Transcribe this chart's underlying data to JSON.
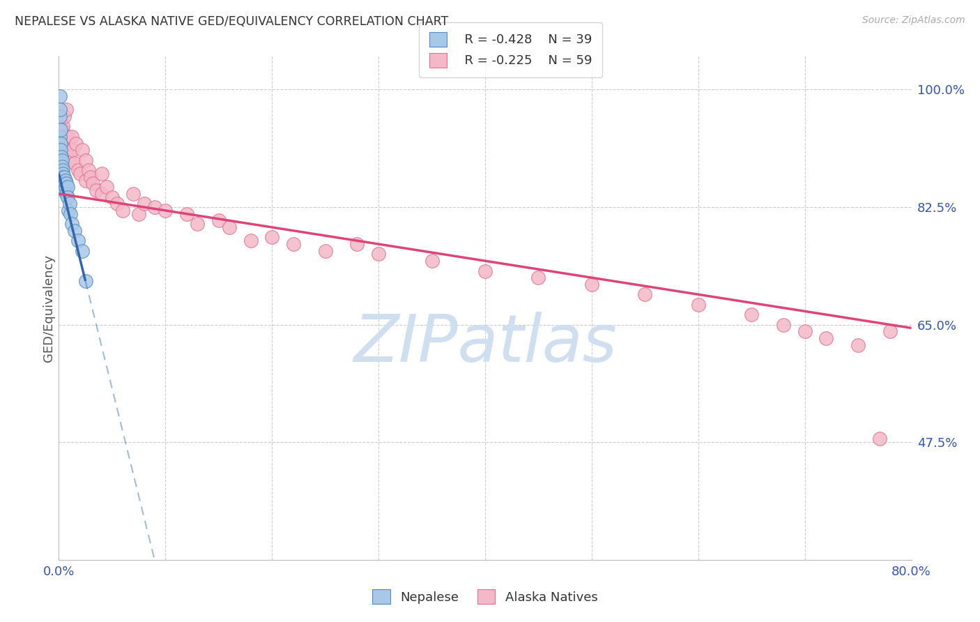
{
  "title": "NEPALESE VS ALASKA NATIVE GED/EQUIVALENCY CORRELATION CHART",
  "source": "Source: ZipAtlas.com",
  "ylabel": "GED/Equivalency",
  "y_tick_labels": [
    "100.0%",
    "82.5%",
    "65.0%",
    "47.5%"
  ],
  "y_tick_values": [
    1.0,
    0.825,
    0.65,
    0.475
  ],
  "legend_blue_r": "R = -0.428",
  "legend_blue_n": "N = 39",
  "legend_pink_r": "R = -0.225",
  "legend_pink_n": "N = 59",
  "blue_color": "#a8c8e8",
  "pink_color": "#f4b8c8",
  "blue_edge_color": "#5588bb",
  "pink_edge_color": "#e07090",
  "blue_line_color": "#3366aa",
  "pink_line_color": "#dd4477",
  "watermark_color": "#d0dff0",
  "xlim": [
    0.0,
    0.8
  ],
  "ylim": [
    0.3,
    1.05
  ],
  "blue_line_x0": 0.0,
  "blue_line_y0": 0.875,
  "blue_line_x1": 0.025,
  "blue_line_y1": 0.715,
  "pink_line_x0": 0.0,
  "pink_line_y0": 0.845,
  "pink_line_x1": 0.8,
  "pink_line_y1": 0.645,
  "nepalese_x": [
    0.0008,
    0.001,
    0.001,
    0.0012,
    0.0013,
    0.0015,
    0.0015,
    0.0018,
    0.002,
    0.002,
    0.002,
    0.0022,
    0.0025,
    0.003,
    0.003,
    0.003,
    0.003,
    0.0035,
    0.004,
    0.004,
    0.004,
    0.004,
    0.005,
    0.005,
    0.005,
    0.006,
    0.006,
    0.007,
    0.007,
    0.008,
    0.008,
    0.009,
    0.01,
    0.011,
    0.012,
    0.015,
    0.018,
    0.022,
    0.025
  ],
  "nepalese_y": [
    0.99,
    0.96,
    0.93,
    0.97,
    0.91,
    0.94,
    0.9,
    0.92,
    0.91,
    0.895,
    0.88,
    0.9,
    0.89,
    0.895,
    0.885,
    0.875,
    0.865,
    0.88,
    0.875,
    0.87,
    0.86,
    0.855,
    0.87,
    0.86,
    0.85,
    0.865,
    0.855,
    0.86,
    0.845,
    0.855,
    0.84,
    0.82,
    0.83,
    0.815,
    0.8,
    0.79,
    0.775,
    0.76,
    0.715
  ],
  "alaska_x": [
    0.001,
    0.002,
    0.003,
    0.003,
    0.004,
    0.005,
    0.006,
    0.007,
    0.007,
    0.008,
    0.009,
    0.01,
    0.012,
    0.013,
    0.015,
    0.016,
    0.018,
    0.02,
    0.022,
    0.025,
    0.025,
    0.028,
    0.03,
    0.032,
    0.035,
    0.04,
    0.04,
    0.045,
    0.05,
    0.055,
    0.06,
    0.07,
    0.075,
    0.08,
    0.09,
    0.1,
    0.12,
    0.13,
    0.15,
    0.16,
    0.18,
    0.2,
    0.22,
    0.25,
    0.28,
    0.3,
    0.35,
    0.4,
    0.45,
    0.5,
    0.55,
    0.6,
    0.65,
    0.68,
    0.7,
    0.72,
    0.75,
    0.77,
    0.78
  ],
  "alaska_y": [
    0.96,
    0.955,
    0.94,
    0.92,
    0.945,
    0.96,
    0.93,
    0.97,
    0.91,
    0.93,
    0.9,
    0.895,
    0.93,
    0.91,
    0.89,
    0.92,
    0.88,
    0.875,
    0.91,
    0.895,
    0.865,
    0.88,
    0.87,
    0.86,
    0.85,
    0.875,
    0.845,
    0.855,
    0.84,
    0.83,
    0.82,
    0.845,
    0.815,
    0.83,
    0.825,
    0.82,
    0.815,
    0.8,
    0.805,
    0.795,
    0.775,
    0.78,
    0.77,
    0.76,
    0.77,
    0.755,
    0.745,
    0.73,
    0.72,
    0.71,
    0.695,
    0.68,
    0.665,
    0.65,
    0.64,
    0.63,
    0.62,
    0.48,
    0.64
  ]
}
